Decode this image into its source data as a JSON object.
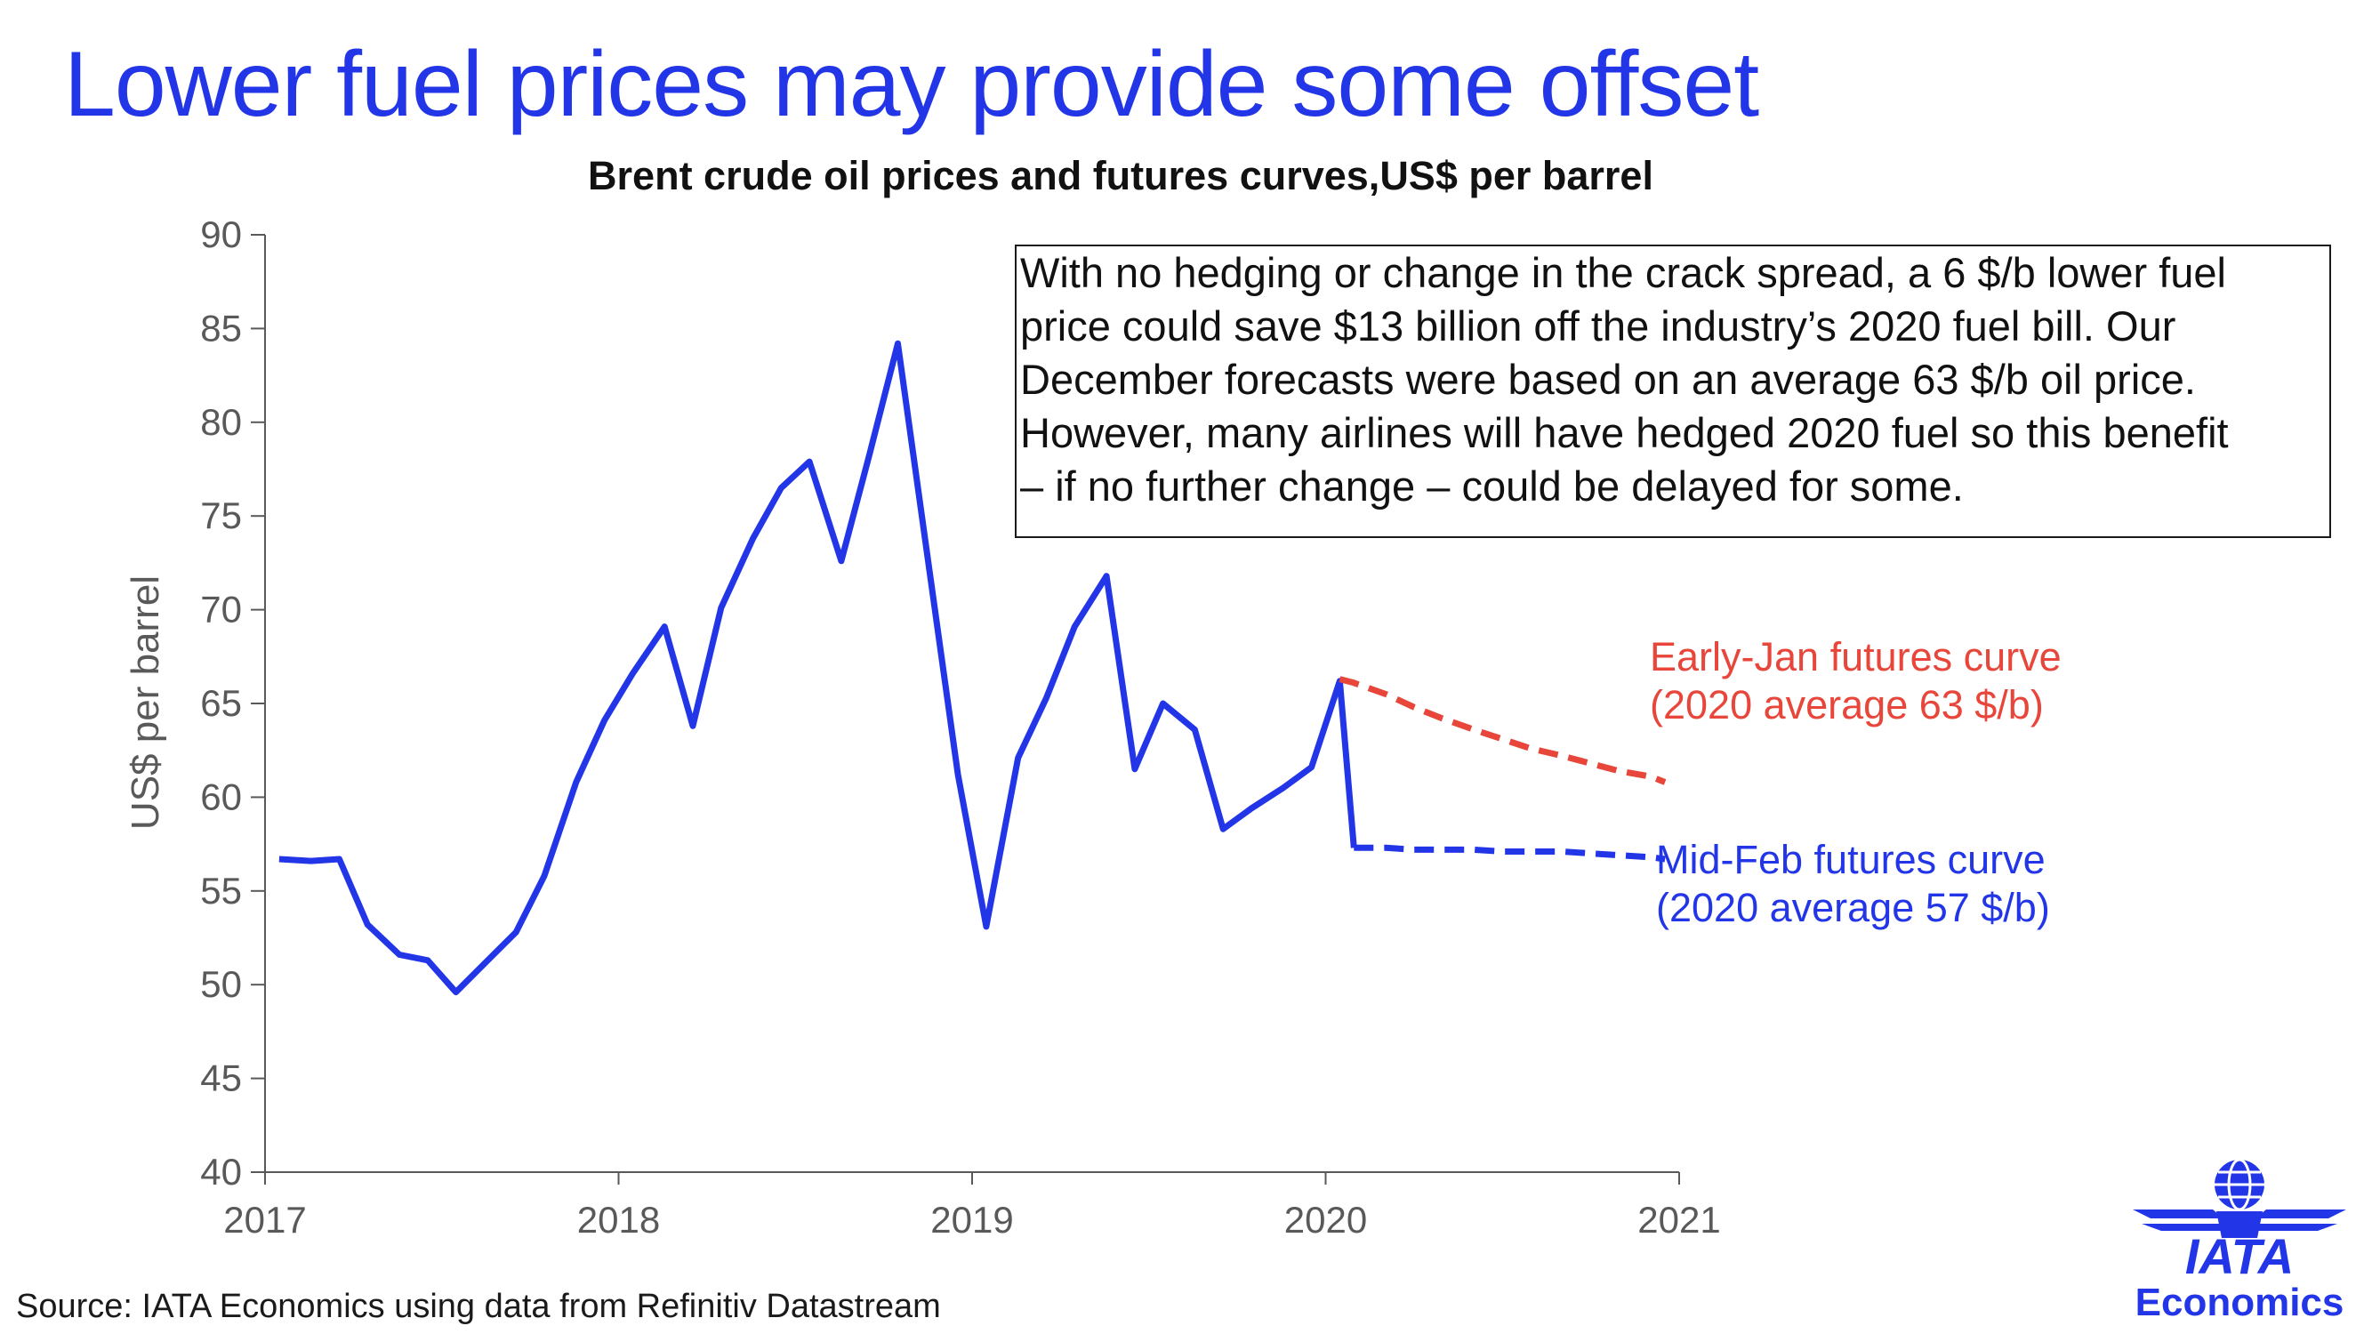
{
  "slide": {
    "title": "Lower fuel prices may provide some offset",
    "source": "Source: IATA Economics using data from Refinitiv Datastream"
  },
  "note": {
    "lines": [
      "With no hedging or change in the crack spread, a 6 $/b lower fuel",
      "price could save $13 billion off the industry’s 2020 fuel bill. Our",
      "December forecasts were based on an average 63 $/b oil price.",
      "However, many airlines will have hedged 2020 fuel so this benefit",
      "– if no further change – could be delayed for some."
    ]
  },
  "labels": {
    "jan_curve": [
      "Early-Jan futures curve",
      "(2020 average 63 $/b)"
    ],
    "feb_curve": [
      "Mid-Feb futures curve",
      "(2020 average 57 $/b)"
    ]
  },
  "logo": {
    "wordmark": "IATA",
    "subtitle": "Economics"
  },
  "colors": {
    "brand_blue": "#2236e8",
    "futures_red": "#e8463a",
    "axis_gray": "#595959"
  },
  "chart_data": {
    "type": "line",
    "title": "Brent crude oil prices and futures curves,US$ per barrel",
    "xlabel": "",
    "ylabel": "US$ per barrel",
    "xlim": [
      2017,
      2021
    ],
    "ylim": [
      40,
      90
    ],
    "x_ticks": [
      "2017",
      "2018",
      "2019",
      "2020",
      "2021"
    ],
    "y_ticks": [
      40,
      45,
      50,
      55,
      60,
      65,
      70,
      75,
      80,
      85,
      90
    ],
    "grid": false,
    "series": [
      {
        "name": "Brent crude oil price",
        "style": "solid",
        "color": "#2236e8",
        "x": [
          2017.04,
          2017.13,
          2017.21,
          2017.29,
          2017.38,
          2017.46,
          2017.54,
          2017.63,
          2017.71,
          2017.79,
          2017.88,
          2017.96,
          2018.04,
          2018.13,
          2018.21,
          2018.29,
          2018.38,
          2018.46,
          2018.54,
          2018.63,
          2018.71,
          2018.79,
          2018.88,
          2018.96,
          2019.04,
          2019.13,
          2019.21,
          2019.29,
          2019.38,
          2019.46,
          2019.54,
          2019.63,
          2019.71,
          2019.79,
          2019.88,
          2019.96,
          2020.04,
          2020.08
        ],
        "values": [
          56.7,
          56.6,
          56.7,
          53.2,
          51.6,
          51.3,
          49.6,
          51.3,
          52.8,
          55.8,
          60.8,
          64.1,
          66.6,
          69.1,
          63.8,
          70.1,
          73.8,
          76.5,
          77.9,
          72.6,
          78.3,
          84.2,
          72.0,
          61.2,
          53.1,
          62.1,
          65.3,
          69.1,
          71.8,
          61.5,
          65.0,
          63.6,
          58.3,
          59.4,
          60.5,
          61.6,
          66.2,
          57.3
        ]
      },
      {
        "name": "Early-Jan futures curve",
        "style": "dashed",
        "color": "#e8463a",
        "x": [
          2020.04,
          2020.08,
          2020.17,
          2020.25,
          2020.33,
          2020.42,
          2020.5,
          2020.58,
          2020.67,
          2020.75,
          2020.83,
          2020.92,
          2020.96
        ],
        "values": [
          66.3,
          66.1,
          65.5,
          64.8,
          64.2,
          63.6,
          63.1,
          62.6,
          62.2,
          61.8,
          61.4,
          61.1,
          60.8
        ]
      },
      {
        "name": "Mid-Feb futures curve",
        "style": "dashed",
        "color": "#2236e8",
        "x": [
          2020.08,
          2020.17,
          2020.25,
          2020.33,
          2020.42,
          2020.5,
          2020.58,
          2020.67,
          2020.75,
          2020.83,
          2020.92,
          2020.96
        ],
        "values": [
          57.3,
          57.3,
          57.2,
          57.2,
          57.2,
          57.1,
          57.1,
          57.1,
          57.0,
          56.9,
          56.8,
          56.7
        ]
      }
    ]
  }
}
